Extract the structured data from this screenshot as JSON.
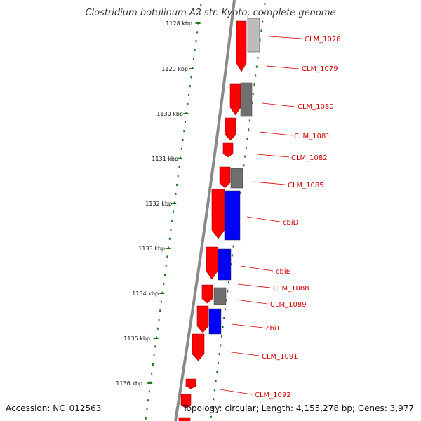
{
  "title": "Clostridium botulinum A2 str. Kyoto, complete genome",
  "footer": {
    "accession": "Accession: NC_012563",
    "topology": "Topology: circular; Length: 4,155,278 bp; Genes: 3,977"
  },
  "ruler": {
    "tick_labels": [
      "1128 kbp",
      "1129 kbp",
      "1130 kbp",
      "1131 kbp",
      "1132 kbp",
      "1133 kbp",
      "1134 kbp",
      "1135 kbp",
      "1136 kbp"
    ],
    "color": "#1a7a1a"
  },
  "colors": {
    "backbone": "#7f7f7f",
    "forward_cds": "#ff0000",
    "blue_feature": "#0000ff",
    "gray_feature": "#707070",
    "light_gray_feature": "#bcbcbc",
    "label": "#d40000"
  },
  "gene_labels": [
    "CLM_1078",
    "CLM_1079",
    "CLM_1080",
    "CLM_1081",
    "CLM_1082",
    "CLM_1085",
    "cbiD",
    "cbiE",
    "CLM_1088",
    "CLM_1089",
    "cbiT",
    "CLM_1091",
    "CLM_1092"
  ]
}
